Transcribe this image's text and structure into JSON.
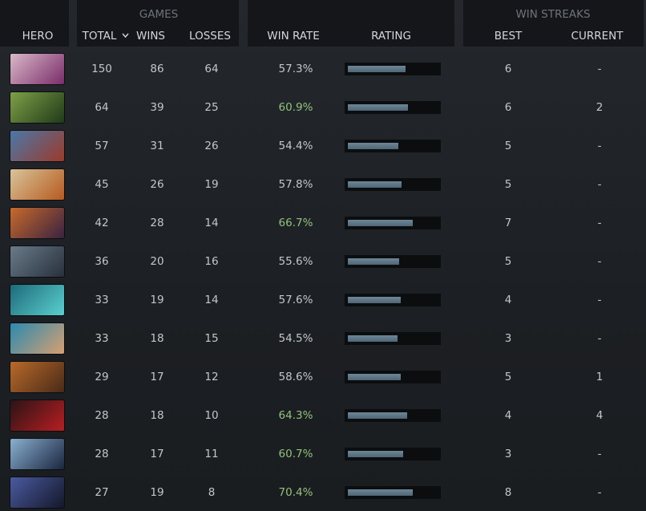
{
  "header": {
    "hero": "HERO",
    "games_group": "GAMES",
    "total": "TOTAL",
    "wins": "WINS",
    "losses": "LOSSES",
    "win_rate": "WIN RATE",
    "rating": "RATING",
    "streaks_group": "WIN STREAKS",
    "best": "BEST",
    "current": "CURRENT"
  },
  "rating_range": [
    0,
    100
  ],
  "rating_color": "#4f6676",
  "win_rate_colors": {
    "normal": "#c3c6ca",
    "high": "#93c27c"
  },
  "rows": [
    {
      "total": 150,
      "wins": 86,
      "losses": 64,
      "win_rate": "57.3%",
      "high": false,
      "rating": 64,
      "best": 6,
      "current": "-"
    },
    {
      "total": 64,
      "wins": 39,
      "losses": 25,
      "win_rate": "60.9%",
      "high": true,
      "rating": 67,
      "best": 6,
      "current": "2"
    },
    {
      "total": 57,
      "wins": 31,
      "losses": 26,
      "win_rate": "54.4%",
      "high": false,
      "rating": 56,
      "best": 5,
      "current": "-"
    },
    {
      "total": 45,
      "wins": 26,
      "losses": 19,
      "win_rate": "57.8%",
      "high": false,
      "rating": 60,
      "best": 5,
      "current": "-"
    },
    {
      "total": 42,
      "wins": 28,
      "losses": 14,
      "win_rate": "66.7%",
      "high": true,
      "rating": 72,
      "best": 7,
      "current": "-"
    },
    {
      "total": 36,
      "wins": 20,
      "losses": 16,
      "win_rate": "55.6%",
      "high": false,
      "rating": 57,
      "best": 5,
      "current": "-"
    },
    {
      "total": 33,
      "wins": 19,
      "losses": 14,
      "win_rate": "57.6%",
      "high": false,
      "rating": 59,
      "best": 4,
      "current": "-"
    },
    {
      "total": 33,
      "wins": 18,
      "losses": 15,
      "win_rate": "54.5%",
      "high": false,
      "rating": 55,
      "best": 3,
      "current": "-"
    },
    {
      "total": 29,
      "wins": 17,
      "losses": 12,
      "win_rate": "58.6%",
      "high": false,
      "rating": 59,
      "best": 5,
      "current": "1"
    },
    {
      "total": 28,
      "wins": 18,
      "losses": 10,
      "win_rate": "64.3%",
      "high": true,
      "rating": 66,
      "best": 4,
      "current": "4"
    },
    {
      "total": 28,
      "wins": 17,
      "losses": 11,
      "win_rate": "60.7%",
      "high": true,
      "rating": 62,
      "best": 3,
      "current": "-"
    },
    {
      "total": 27,
      "wins": 19,
      "losses": 8,
      "win_rate": "70.4%",
      "high": true,
      "rating": 72,
      "best": 8,
      "current": "-"
    }
  ]
}
